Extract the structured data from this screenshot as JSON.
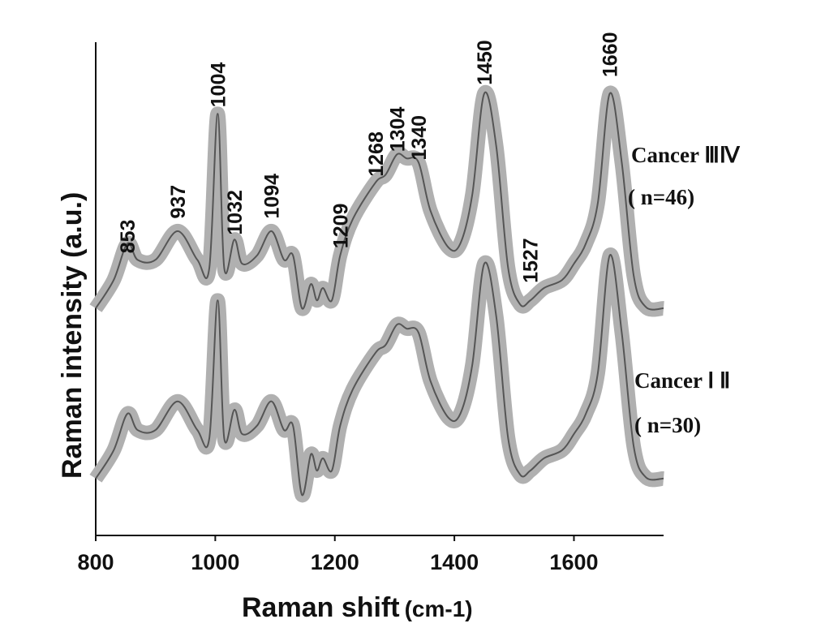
{
  "chart_data": {
    "type": "line",
    "title": "",
    "xlabel": "Raman shift",
    "xlabel_unit": "(cm-1)",
    "ylabel": "Raman intensity (a.u.)",
    "xlim": [
      800,
      1750
    ],
    "ylim": [
      0,
      100
    ],
    "x_ticks": [
      800,
      1000,
      1200,
      1400,
      1600
    ],
    "x_tick_labels": [
      "800",
      "1000",
      "1200",
      "1400",
      "1600"
    ],
    "grid": false,
    "band_halfwidth": 1.3,
    "x": [
      800,
      830,
      853,
      870,
      900,
      937,
      970,
      990,
      1004,
      1015,
      1032,
      1045,
      1070,
      1094,
      1115,
      1130,
      1145,
      1160,
      1170,
      1180,
      1195,
      1209,
      1230,
      1268,
      1285,
      1304,
      1320,
      1340,
      1360,
      1390,
      1410,
      1430,
      1450,
      1470,
      1490,
      1510,
      1527,
      1550,
      1580,
      1600,
      1620,
      1640,
      1660,
      1680,
      1700,
      1720,
      1750
    ],
    "series": [
      {
        "name": "Cancer ⅢⅣ",
        "n_label": "( n=46)",
        "values": [
          45.9,
          51.6,
          59,
          55.7,
          55.7,
          61.5,
          55.7,
          54,
          85.2,
          54,
          59.8,
          54.9,
          56.6,
          61.5,
          55.7,
          56.6,
          45.9,
          50.8,
          47.5,
          50,
          47.5,
          56.6,
          63.9,
          71.3,
          72.9,
          77,
          76.2,
          75.4,
          65.6,
          58.2,
          59,
          68.9,
          89.3,
          78.7,
          54,
          46.7,
          47.5,
          50,
          51.6,
          54.9,
          59,
          67.2,
          89.3,
          75.4,
          52.5,
          46.2,
          45.9
        ]
      },
      {
        "name": "Cancer Ⅰ Ⅱ",
        "n_label": "( n=30)",
        "values": [
          11.5,
          17.2,
          24.6,
          21.3,
          21.3,
          27.1,
          21.3,
          19.6,
          47.5,
          19.6,
          25.4,
          20.5,
          22.2,
          27.1,
          21.3,
          22.2,
          8.2,
          16.4,
          13.1,
          15.6,
          13.1,
          22.2,
          29.5,
          36.9,
          38.5,
          42.6,
          41.8,
          41,
          31.2,
          23.8,
          24.6,
          34.5,
          54.9,
          44.3,
          19.6,
          12.3,
          13.1,
          15.6,
          17.2,
          20.5,
          24.6,
          32.8,
          56.6,
          41,
          18,
          11.8,
          11.5
        ]
      }
    ],
    "annotations": [
      {
        "text": "853",
        "x": 853,
        "y": 57
      },
      {
        "text": "937",
        "x": 937,
        "y": 64
      },
      {
        "text": "1004",
        "x": 1004,
        "y": 86.5
      },
      {
        "text": "1032",
        "x": 1032,
        "y": 60.7
      },
      {
        "text": "1094",
        "x": 1094,
        "y": 64
      },
      {
        "text": "1209",
        "x": 1209,
        "y": 58
      },
      {
        "text": "1268",
        "x": 1268,
        "y": 72.5
      },
      {
        "text": "1304",
        "x": 1304,
        "y": 77.5
      },
      {
        "text": "1340",
        "x": 1340,
        "y": 75.8
      },
      {
        "text": "1450",
        "x": 1450,
        "y": 91
      },
      {
        "text": "1527",
        "x": 1527,
        "y": 51
      },
      {
        "text": "1660",
        "x": 1660,
        "y": 92.6
      }
    ],
    "colors": {
      "line": "#555555",
      "band": "#b0b0b0",
      "axis": "#111111"
    }
  }
}
